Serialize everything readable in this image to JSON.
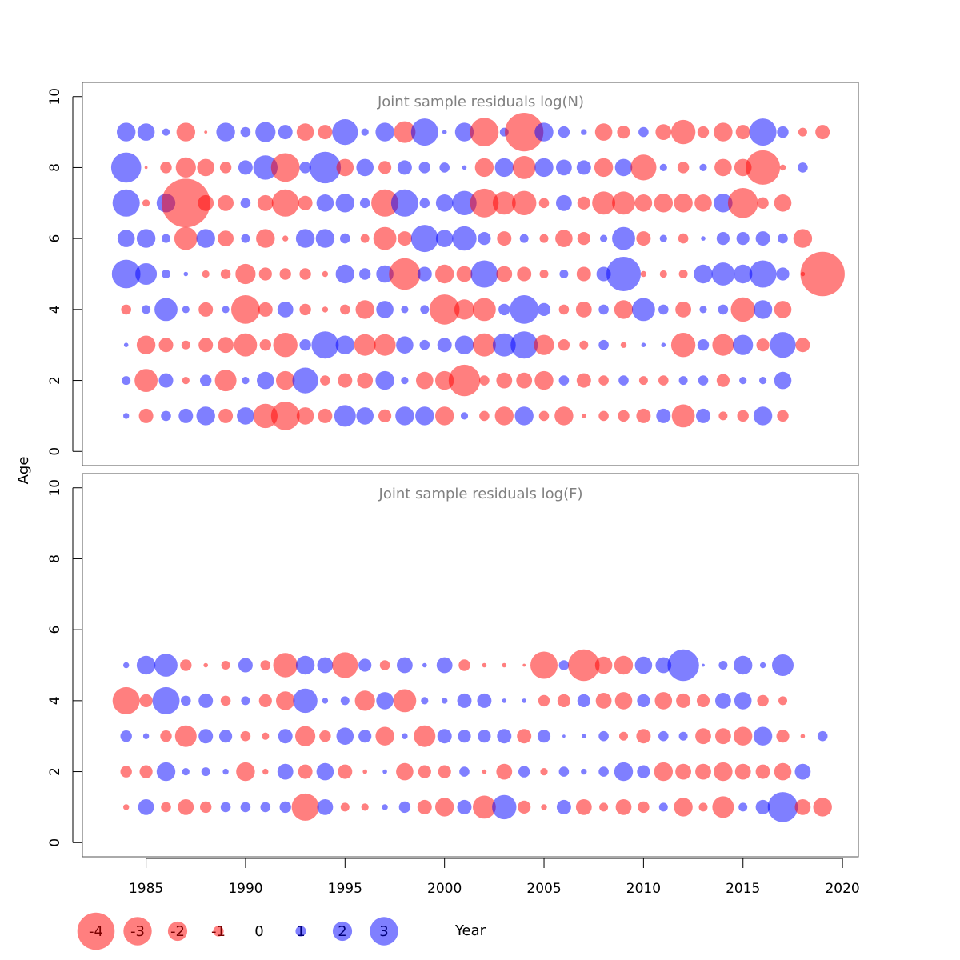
{
  "chart_data": {
    "type": "scatter",
    "subtype": "bubble",
    "xlabel": "Year",
    "ylabel": "Age",
    "xlim": [
      1981.8,
      2020.8
    ],
    "x_ticks": [
      1985,
      1990,
      1995,
      2000,
      2005,
      2010,
      2015,
      2020
    ],
    "y_ticks": [
      0,
      2,
      4,
      6,
      8,
      10
    ],
    "ylim": [
      -0.4,
      10.4
    ],
    "first_year": 1984,
    "colors": {
      "negative": "#ff0000",
      "positive": "#0000ff",
      "opacity": 0.5,
      "box": "#555555"
    },
    "legend": {
      "position": "bottom-left",
      "items": [
        {
          "label": "-4",
          "value": -4
        },
        {
          "label": "-3",
          "value": -3
        },
        {
          "label": "-2",
          "value": -2
        },
        {
          "label": "-1",
          "value": -1
        },
        {
          "label": "0",
          "value": 0
        },
        {
          "label": "1",
          "value": 1
        },
        {
          "label": "2",
          "value": 2
        },
        {
          "label": "3",
          "value": 3
        }
      ]
    },
    "panels": [
      {
        "title": "Joint sample residuals log(N)",
        "residuals": {
          "9": [
            1.2,
            1.1,
            0.4,
            -1.2,
            -0.1,
            1.2,
            0.6,
            1.3,
            0.9,
            -1.1,
            -0.9,
            1.7,
            0.4,
            1.2,
            -1.4,
            1.8,
            0.2,
            1.2,
            -1.9,
            0.5,
            -2.6,
            1.2,
            0.7,
            0.3,
            -1.1,
            -0.8,
            0.6,
            -1.0,
            -1.6,
            -0.7,
            -1.2,
            -0.9,
            1.8,
            0.7,
            -0.5,
            -0.9
          ],
          "8": [
            2.0,
            -0.1,
            -0.7,
            -1.3,
            -1.1,
            -0.7,
            0.9,
            1.6,
            -1.9,
            0.7,
            2.1,
            -1.1,
            1.1,
            -0.8,
            0.9,
            0.7,
            0.6,
            0.2,
            -1.2,
            1.2,
            -1.5,
            1.2,
            1.0,
            0.9,
            -1.2,
            1.1,
            -1.7,
            0.4,
            -0.7,
            0.4,
            -1.1,
            -1.1,
            -2.3,
            -0.3,
            0.6
          ],
          "7": [
            1.8,
            -0.4,
            1.2,
            -3.3,
            -1.0,
            -1.0,
            0.6,
            -1.0,
            -1.8,
            -0.9,
            1.1,
            1.2,
            0.6,
            -1.8,
            1.8,
            0.6,
            1.1,
            1.6,
            -1.9,
            -1.5,
            -1.6,
            -0.6,
            1.0,
            -0.8,
            -1.5,
            -1.5,
            -1.1,
            -1.2,
            -1.2,
            -1.1,
            1.2,
            -2.0,
            -0.7,
            -1.1
          ],
          "6": [
            1.1,
            1.2,
            0.5,
            -1.5,
            1.2,
            -1.0,
            0.5,
            -1.2,
            -0.3,
            1.2,
            1.2,
            0.6,
            -0.5,
            -1.5,
            -0.9,
            1.8,
            1.1,
            1.6,
            0.8,
            -0.9,
            0.5,
            -0.5,
            -1.1,
            -0.8,
            0.4,
            1.5,
            -0.9,
            0.4,
            -0.6,
            0.2,
            0.8,
            0.8,
            0.9,
            0.6,
            -1.2
          ],
          "5": [
            1.9,
            1.4,
            0.5,
            0.2,
            -0.4,
            -0.6,
            -1.3,
            -0.8,
            -0.7,
            -0.7,
            -0.3,
            1.2,
            0.7,
            1.1,
            -2.1,
            0.9,
            -1.2,
            -1.0,
            1.8,
            -1.0,
            -0.9,
            -0.5,
            0.5,
            -0.9,
            0.9,
            2.3,
            -0.3,
            -0.4,
            -0.5,
            1.2,
            1.5,
            1.2,
            1.8,
            0.8,
            -0.2,
            -3.0
          ],
          "4": [
            -0.6,
            0.5,
            1.5,
            0.4,
            -0.9,
            0.4,
            -1.9,
            -0.9,
            1.0,
            -0.7,
            -0.3,
            -0.6,
            -1.2,
            1.1,
            0.4,
            0.5,
            -2.0,
            -1.3,
            -1.5,
            0.7,
            1.9,
            0.8,
            -0.6,
            -1.0,
            0.6,
            -1.2,
            1.5,
            0.6,
            -1.0,
            0.4,
            0.6,
            -1.6,
            1.2,
            -1.1
          ],
          "3": [
            0.2,
            -1.2,
            -0.9,
            -0.5,
            -0.9,
            -1.0,
            -1.5,
            -0.7,
            -1.6,
            0.7,
            1.8,
            1.2,
            -1.4,
            -1.4,
            1.1,
            0.6,
            0.9,
            1.2,
            -1.5,
            1.5,
            1.8,
            -1.3,
            -0.7,
            -0.5,
            0.6,
            -0.3,
            0.2,
            0.2,
            -1.6,
            0.7,
            -1.4,
            1.3,
            -0.8,
            1.7,
            -0.9
          ],
          "2": [
            0.5,
            -1.5,
            0.9,
            -0.4,
            0.7,
            -1.4,
            0.4,
            1.1,
            -1.2,
            1.7,
            -0.6,
            -0.9,
            -1.0,
            1.2,
            0.4,
            -1.1,
            -1.2,
            -2.1,
            -0.6,
            -1.0,
            -1.0,
            -1.2,
            0.6,
            -0.9,
            -0.6,
            0.6,
            -0.5,
            -0.6,
            0.5,
            0.6,
            -0.8,
            0.4,
            0.4,
            1.1
          ],
          "1": [
            0.3,
            -0.9,
            0.6,
            0.9,
            1.2,
            -0.9,
            1.1,
            -1.6,
            -1.9,
            -1.1,
            -0.9,
            1.4,
            1.1,
            -0.8,
            1.2,
            1.2,
            -1.2,
            0.4,
            -0.6,
            -1.2,
            1.2,
            -0.6,
            -1.2,
            -0.2,
            -0.6,
            -0.7,
            -0.9,
            0.9,
            -1.5,
            0.9,
            -0.5,
            -0.7,
            1.2,
            -0.7
          ]
        }
      },
      {
        "title": "Joint sample residuals log(F)",
        "residuals": {
          "5": [
            0.3,
            1.2,
            1.5,
            -0.7,
            -0.2,
            -0.5,
            0.9,
            -0.6,
            -1.6,
            1.2,
            1.0,
            -1.7,
            0.8,
            -0.6,
            1.0,
            0.2,
            1.0,
            -0.7,
            -0.2,
            -0.2,
            -0.1,
            -1.8,
            0.6,
            -2.1,
            -1.1,
            -1.2,
            1.1,
            1.0,
            2.1,
            0.1,
            0.5,
            1.2,
            0.3,
            1.4
          ],
          "4": [
            -1.8,
            -0.8,
            1.8,
            0.6,
            0.9,
            -0.6,
            0.5,
            -0.8,
            -1.2,
            1.6,
            0.3,
            0.5,
            -1.3,
            1.1,
            -1.5,
            0.4,
            0.3,
            0.9,
            0.9,
            0.2,
            0.2,
            -0.7,
            -0.8,
            0.8,
            -1.0,
            -1.1,
            0.8,
            -1.1,
            -0.9,
            -0.8,
            1.0,
            1.1,
            -0.7,
            -0.5
          ],
          "3": [
            0.7,
            0.3,
            -0.7,
            -1.4,
            0.9,
            0.8,
            -0.6,
            -0.4,
            0.9,
            -1.3,
            -0.7,
            1.1,
            0.8,
            -1.2,
            0.3,
            -1.4,
            0.9,
            0.8,
            0.8,
            0.9,
            -0.9,
            0.8,
            0.1,
            0.2,
            0.6,
            -0.5,
            -0.9,
            0.6,
            0.5,
            -1.0,
            -1.0,
            -1.2,
            1.2,
            -0.8,
            -0.2,
            0.6
          ],
          "2": [
            -0.7,
            -0.8,
            1.2,
            0.4,
            0.5,
            0.3,
            -1.2,
            -0.3,
            1.0,
            -0.9,
            1.1,
            -0.9,
            -0.2,
            0.2,
            -1.1,
            -0.8,
            -0.8,
            0.6,
            -0.2,
            -1.0,
            0.7,
            -0.4,
            0.6,
            0.3,
            0.6,
            1.2,
            0.8,
            -1.2,
            -1.0,
            -1.0,
            -1.2,
            -1.0,
            -0.9,
            -1.1,
            1.0
          ],
          "1": [
            -0.3,
            1.0,
            -0.6,
            -1.0,
            -0.7,
            0.6,
            0.6,
            0.6,
            0.7,
            -1.8,
            1.0,
            -0.5,
            -0.4,
            0.3,
            0.7,
            -0.9,
            -1.2,
            0.9,
            -1.5,
            1.6,
            -0.8,
            -0.3,
            0.9,
            -1.0,
            -0.5,
            -1.0,
            -0.7,
            0.5,
            -1.2,
            -0.5,
            -1.4,
            0.5,
            0.9,
            2.0,
            -1.0,
            -1.2
          ]
        }
      }
    ]
  }
}
